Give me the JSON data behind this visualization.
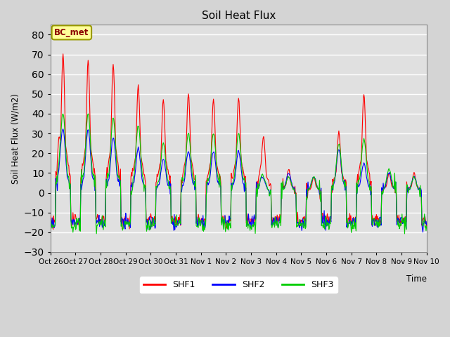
{
  "title": "Soil Heat Flux",
  "ylabel": "Soil Heat Flux (W/m2)",
  "xlabel": "Time",
  "ylim": [
    -30,
    85
  ],
  "yticks": [
    -30,
    -20,
    -10,
    0,
    10,
    20,
    30,
    40,
    50,
    60,
    70,
    80
  ],
  "bg_color": "#e0e0e0",
  "grid_color": "#ffffff",
  "shf1_color": "#ff0000",
  "shf2_color": "#0000ff",
  "shf3_color": "#00cc00",
  "annotation_text": "BC_met",
  "annotation_bg": "#ffff99",
  "annotation_border": "#999900",
  "legend_labels": [
    "SHF1",
    "SHF2",
    "SHF3"
  ],
  "x_tick_labels": [
    "Oct 26",
    "Oct 27",
    "Oct 28",
    "Oct 29",
    "Oct 30",
    "Oct 31",
    "Nov 1",
    "Nov 2",
    "Nov 3",
    "Nov 4",
    "Nov 5",
    "Nov 6",
    "Nov 7",
    "Nov 8",
    "Nov 9",
    "Nov 10"
  ],
  "line_width": 0.8,
  "day_peaks_shf1": [
    70,
    67,
    65,
    54,
    47,
    50,
    47,
    48,
    27,
    12,
    8,
    31,
    50,
    10,
    10,
    0
  ],
  "day_peaks_shf2": [
    32,
    32,
    28,
    22,
    17,
    21,
    21,
    21,
    6,
    10,
    8,
    22,
    15,
    10,
    8,
    0
  ],
  "day_peaks_shf3": [
    40,
    40,
    38,
    34,
    25,
    30,
    30,
    30,
    7,
    8,
    8,
    25,
    27,
    12,
    8,
    0
  ],
  "night_base": -15,
  "figsize": [
    6.4,
    4.8
  ],
  "dpi": 100
}
